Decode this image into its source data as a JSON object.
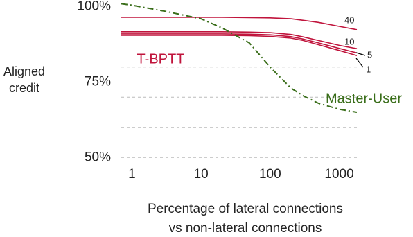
{
  "chart_data": {
    "type": "line",
    "xlabel": [
      "Percentage of lateral connections",
      "vs non-lateral connections"
    ],
    "ylabel": [
      "Aligned",
      "credit"
    ],
    "x": [
      0.7,
      1,
      3,
      10,
      20,
      50,
      100,
      200,
      300,
      500,
      1000,
      1800
    ],
    "xlim": [
      0.7,
      1800
    ],
    "xticks": [
      1,
      10,
      100,
      1000
    ],
    "xscale": "log",
    "ylim": [
      48,
      102
    ],
    "yticks": [
      {
        "value": 50,
        "label": "50%"
      },
      {
        "value": 75,
        "label": "75%"
      },
      {
        "value": 100,
        "label": "100%"
      }
    ],
    "grid_lines": [
      50,
      60,
      70,
      80
    ],
    "annotations": [
      {
        "text": "T-BPTT",
        "color": "#c0143c"
      }
    ],
    "series": [
      {
        "name": "40",
        "color": "#c0143c",
        "style": "solid",
        "values": [
          96.5,
          96.5,
          96.5,
          96.5,
          96.5,
          96.4,
          96.3,
          96.0,
          95.5,
          94.8,
          93.5,
          92.4
        ]
      },
      {
        "name": "10",
        "color": "#c0143c",
        "style": "solid",
        "values": [
          91.7,
          91.7,
          91.7,
          91.7,
          91.7,
          91.6,
          91.4,
          90.8,
          90.0,
          88.8,
          87.2,
          86.1
        ]
      },
      {
        "name": "5",
        "color": "#c0143c",
        "style": "solid",
        "values": [
          91.0,
          91.0,
          91.0,
          91.0,
          91.0,
          90.9,
          90.7,
          90.1,
          89.3,
          88.0,
          86.2,
          84.7
        ]
      },
      {
        "name": "1",
        "color": "#c0143c",
        "style": "solid",
        "values": [
          90.5,
          90.5,
          90.5,
          90.5,
          90.5,
          90.4,
          90.2,
          89.6,
          88.8,
          87.4,
          85.5,
          83.8
        ]
      },
      {
        "name": "Master-User",
        "color": "#3a6e1a",
        "style": "dashdot",
        "values": [
          101,
          100.5,
          98.5,
          96,
          93,
          88,
          80,
          73,
          70.5,
          68,
          66,
          65
        ]
      }
    ]
  }
}
